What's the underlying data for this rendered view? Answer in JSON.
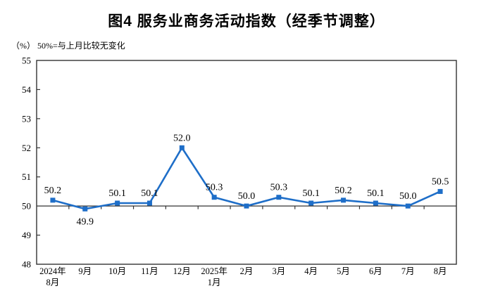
{
  "chart_data": {
    "type": "line",
    "title": "图4  服务业商务活动指数（经季节调整）",
    "subtitle": "（%）  50%=与上月比较无变化",
    "categories": [
      [
        "2024年",
        "8月"
      ],
      [
        "9月"
      ],
      [
        "10月"
      ],
      [
        "11月"
      ],
      [
        "12月"
      ],
      [
        "2025年",
        "1月"
      ],
      [
        "2月"
      ],
      [
        "3月"
      ],
      [
        "4月"
      ],
      [
        "5月"
      ],
      [
        "6月"
      ],
      [
        "7月"
      ],
      [
        "8月"
      ]
    ],
    "values": [
      50.2,
      49.9,
      50.1,
      50.1,
      52.0,
      50.3,
      50.0,
      50.3,
      50.1,
      50.2,
      50.1,
      50.0,
      50.5
    ],
    "point_labels": [
      "50.2",
      "49.9",
      "50.1",
      "50.1",
      "52.0",
      "50.3",
      "50.0",
      "50.3",
      "50.1",
      "50.2",
      "50.1",
      "50.0",
      "50.5"
    ],
    "label_positions": [
      "above",
      "below",
      "above",
      "above",
      "above",
      "above",
      "above",
      "above",
      "above",
      "above",
      "above",
      "above",
      "above"
    ],
    "ylim": [
      48,
      55
    ],
    "yticks": [
      48,
      49,
      50,
      51,
      52,
      53,
      54,
      55
    ],
    "reference_value": 50,
    "grid": false,
    "legend_position": "none",
    "marker": "square",
    "line_color": "#1e6ec8",
    "axis_color": "#333333"
  }
}
